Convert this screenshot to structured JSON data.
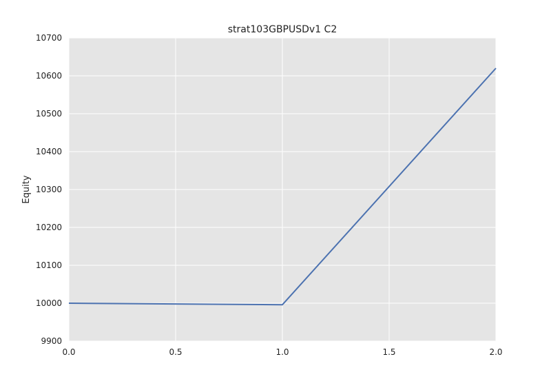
{
  "chart_data": {
    "type": "line",
    "title": "strat103GBPUSDv1 C2",
    "xlabel": "",
    "ylabel": "Equity",
    "xlim": [
      0.0,
      2.0
    ],
    "ylim": [
      9900,
      10700
    ],
    "x_ticks": [
      0.0,
      0.5,
      1.0,
      1.5,
      2.0
    ],
    "x_tick_labels": [
      "0.0",
      "0.5",
      "1.0",
      "1.5",
      "2.0"
    ],
    "y_ticks": [
      9900,
      10000,
      10100,
      10200,
      10300,
      10400,
      10500,
      10600,
      10700
    ],
    "y_tick_labels": [
      "9900",
      "10000",
      "10100",
      "10200",
      "10300",
      "10400",
      "10500",
      "10600",
      "10700"
    ],
    "grid": true,
    "series": [
      {
        "x": [
          0.0,
          1.0,
          2.0
        ],
        "values": [
          10000,
          9996,
          10620
        ],
        "color": "#4c72b0"
      }
    ],
    "background_color": "#e5e5e5",
    "grid_color": "#ffffff"
  }
}
